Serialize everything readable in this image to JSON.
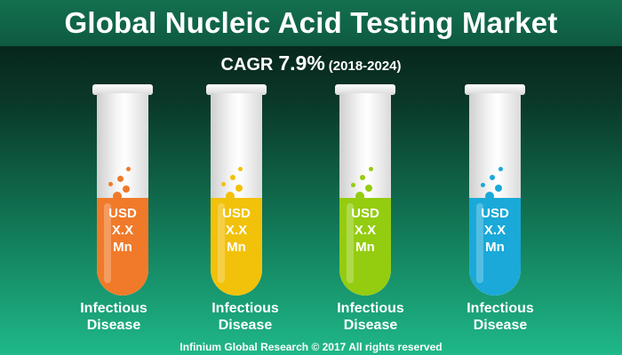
{
  "title": "Global Nucleic Acid Testing Market",
  "cagr": {
    "label": "CAGR",
    "value": "7.9%",
    "period": "(2018-2024)"
  },
  "colors": {
    "tube1": "#f07a2a",
    "tube2": "#f2c10a",
    "tube3": "#94cc10",
    "tube4": "#1aa9d8"
  },
  "chart_data": {
    "type": "bar",
    "categories": [
      "Infectious Disease",
      "Infectious Disease",
      "Infectious Disease",
      "Infectious Disease"
    ],
    "series": [
      {
        "values": [
          "USD X.X Mn",
          "USD X.X Mn",
          "USD X.X Mn",
          "USD X.X Mn"
        ]
      }
    ],
    "title": "Global Nucleic Acid Testing Market",
    "subtitle": "CAGR 7.9% (2018-2024)"
  },
  "tubes": [
    {
      "value_line1": "USD",
      "value_line2": "X.X",
      "value_line3": "Mn",
      "label_line1": "Infectious",
      "label_line2": "Disease"
    },
    {
      "value_line1": "USD",
      "value_line2": "X.X",
      "value_line3": "Mn",
      "label_line1": "Infectious",
      "label_line2": "Disease"
    },
    {
      "value_line1": "USD",
      "value_line2": "X.X",
      "value_line3": "Mn",
      "label_line1": "Infectious",
      "label_line2": "Disease"
    },
    {
      "value_line1": "USD",
      "value_line2": "X.X",
      "value_line3": "Mn",
      "label_line1": "Infectious",
      "label_line2": "Disease"
    }
  ],
  "footer": "Infinium Global Research © 2017 All rights reserved"
}
